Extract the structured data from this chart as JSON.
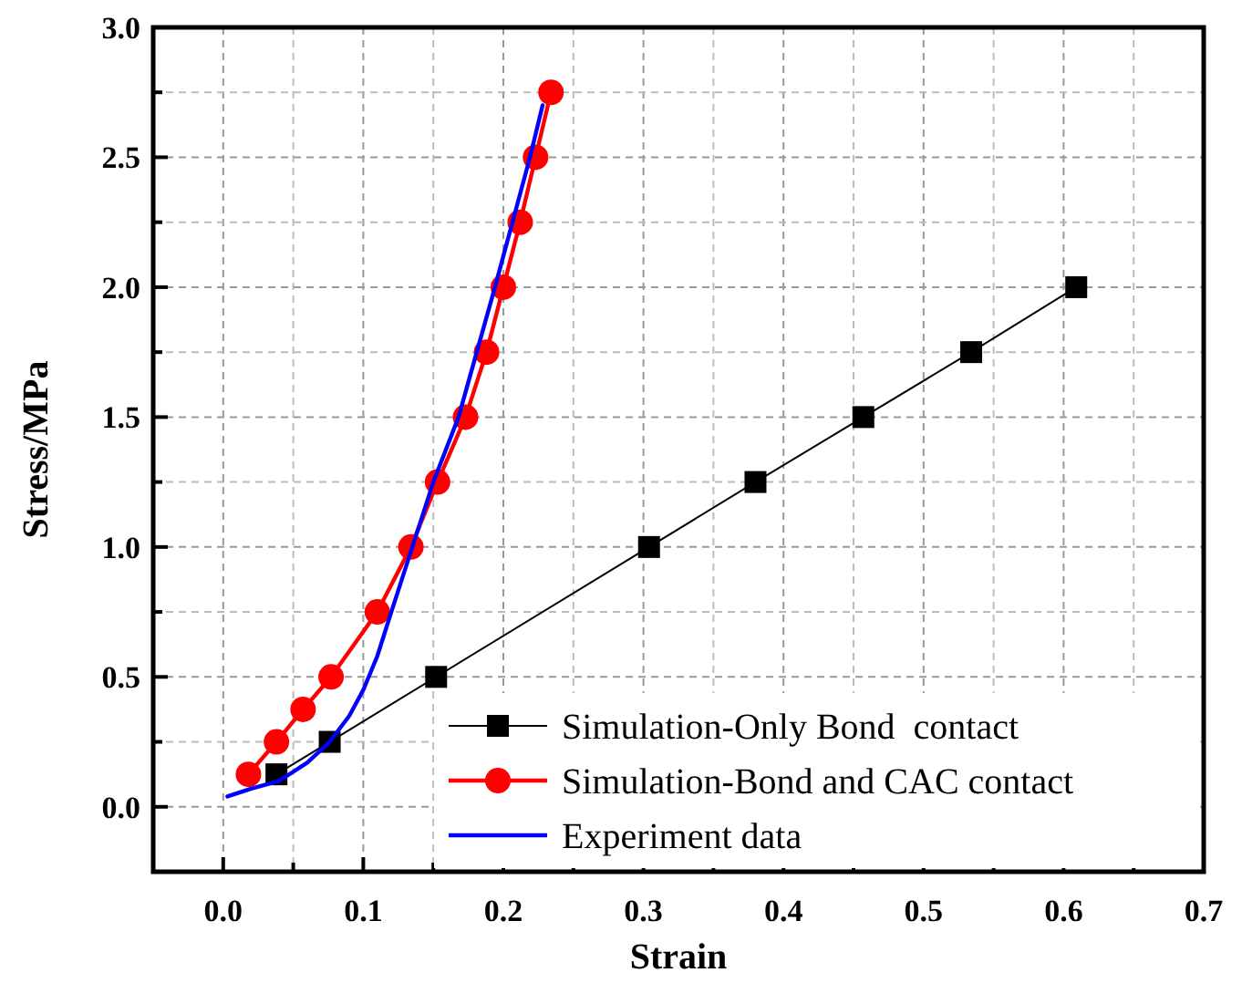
{
  "chart_data": {
    "type": "line",
    "xlabel": "Strain",
    "ylabel": "Stress/MPa",
    "xlim": [
      -0.05,
      0.7
    ],
    "xticks": [
      {
        "value": -0.05,
        "label": null
      },
      {
        "value": 0,
        "label": "0.0"
      },
      {
        "value": 0.05,
        "label": null
      },
      {
        "value": 0.1,
        "label": "0.1"
      },
      {
        "value": 0.15,
        "label": null
      },
      {
        "value": 0.2,
        "label": "0.2"
      },
      {
        "value": 0.25,
        "label": null
      },
      {
        "value": 0.3,
        "label": "0.3"
      },
      {
        "value": 0.35,
        "label": null
      },
      {
        "value": 0.4,
        "label": "0.4"
      },
      {
        "value": 0.45,
        "label": null
      },
      {
        "value": 0.5,
        "label": "0.5"
      },
      {
        "value": 0.55,
        "label": null
      },
      {
        "value": 0.6,
        "label": "0.6"
      },
      {
        "value": 0.65,
        "label": null
      },
      {
        "value": 0.7,
        "label": "0.7"
      }
    ],
    "ylim": [
      -0.25,
      3.0
    ],
    "yticks": [
      {
        "value": -0.25,
        "label": null
      },
      {
        "value": 0,
        "label": "0.0"
      },
      {
        "value": 0.25,
        "label": null
      },
      {
        "value": 0.5,
        "label": "0.5"
      },
      {
        "value": 0.75,
        "label": null
      },
      {
        "value": 1,
        "label": "1.0"
      },
      {
        "value": 1.25,
        "label": null
      },
      {
        "value": 1.5,
        "label": "1.5"
      },
      {
        "value": 1.75,
        "label": null
      },
      {
        "value": 2,
        "label": "2.0"
      },
      {
        "value": 2.25,
        "label": null
      },
      {
        "value": 2.5,
        "label": "2.5"
      },
      {
        "value": 2.75,
        "label": null
      },
      {
        "value": 3,
        "label": "3.0"
      }
    ],
    "grid": true,
    "legend": "bottom right",
    "series": [
      {
        "name": "Simulation-Only Bond  contact",
        "color": "#000000",
        "marker": "square",
        "x": [
          0.038,
          0.076,
          0.152,
          0.304,
          0.38,
          0.457,
          0.534,
          0.609
        ],
        "values": [
          0.125,
          0.25,
          0.5,
          1.0,
          1.25,
          1.5,
          1.75,
          2.0
        ]
      },
      {
        "name": "Simulation-Bond and CAC contact",
        "color": "#ff0000",
        "marker": "circle",
        "x": [
          0.018,
          0.038,
          0.057,
          0.077,
          0.11,
          0.134,
          0.153,
          0.173,
          0.188,
          0.2,
          0.212,
          0.223,
          0.234
        ],
        "values": [
          0.125,
          0.25,
          0.375,
          0.5,
          0.75,
          1.0,
          1.25,
          1.5,
          1.75,
          2.0,
          2.25,
          2.5,
          2.75
        ]
      },
      {
        "name": "Experiment data",
        "color": "#0000ff",
        "marker": "none",
        "x": [
          0.003,
          0.02,
          0.04,
          0.06,
          0.076,
          0.09,
          0.1,
          0.11,
          0.12,
          0.135,
          0.15,
          0.168,
          0.194,
          0.219,
          0.228
        ],
        "values": [
          0.04,
          0.07,
          0.1,
          0.17,
          0.25,
          0.35,
          0.45,
          0.58,
          0.75,
          1.0,
          1.25,
          1.5,
          2.0,
          2.5,
          2.7
        ]
      }
    ]
  }
}
